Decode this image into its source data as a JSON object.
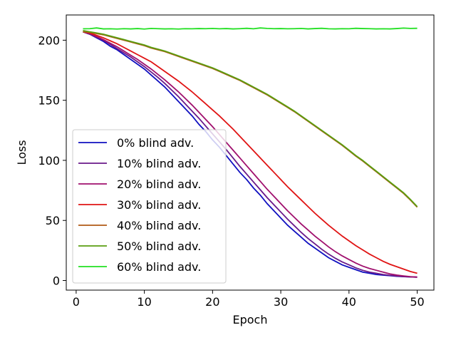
{
  "chart_data": {
    "type": "line",
    "xlabel": "Epoch",
    "ylabel": "Loss",
    "x": [
      1,
      2,
      3,
      4,
      5,
      6,
      7,
      8,
      9,
      10,
      11,
      12,
      13,
      14,
      15,
      16,
      17,
      18,
      19,
      20,
      21,
      22,
      23,
      24,
      25,
      26,
      27,
      28,
      29,
      30,
      31,
      32,
      33,
      34,
      35,
      36,
      37,
      38,
      39,
      40,
      41,
      42,
      43,
      44,
      45,
      46,
      47,
      48,
      49,
      50
    ],
    "xlim": [
      -1.45,
      52.45
    ],
    "xticks": [
      0,
      10,
      20,
      30,
      40,
      50
    ],
    "ylim": [
      -8,
      221
    ],
    "yticks": [
      0,
      50,
      100,
      150,
      200
    ],
    "legend": "lower left",
    "grid": false,
    "series": [
      {
        "name": "0% blind adv.",
        "color": "#1010c0",
        "values": [
          207,
          205,
          202,
          199,
          195,
          192,
          188,
          184,
          180,
          176,
          171,
          166,
          161,
          155,
          149,
          143,
          137,
          130,
          124,
          117,
          111,
          104,
          97,
          90,
          84,
          77,
          71,
          64,
          58,
          52,
          46,
          41,
          36,
          31,
          27,
          23,
          19,
          16,
          13,
          11,
          9,
          7,
          6,
          5,
          4.5,
          4,
          3.5,
          3.2,
          3,
          2.8
        ]
      },
      {
        "name": "10% blind adv.",
        "color": "#6a1a8a",
        "values": [
          207,
          205,
          202.5,
          200,
          196.5,
          193,
          189.5,
          186,
          182,
          178,
          173.5,
          169,
          164,
          158.5,
          153,
          147,
          141,
          135,
          128.5,
          122,
          115.5,
          109,
          102,
          95,
          88.5,
          82,
          75.5,
          69,
          63,
          57,
          51,
          45.5,
          40,
          35,
          30.5,
          26,
          22,
          18.5,
          15.5,
          13,
          10.5,
          8.5,
          7,
          6,
          5,
          4.3,
          3.7,
          3.3,
          3,
          2.8
        ]
      },
      {
        "name": "20% blind adv.",
        "color": "#a0106e",
        "values": [
          207,
          205.5,
          203,
          200.5,
          197.5,
          194.5,
          191,
          187.5,
          184,
          180,
          176,
          171.5,
          167,
          162,
          157,
          151.5,
          146,
          140,
          134,
          128,
          121.5,
          115,
          108.5,
          102,
          95.5,
          89,
          82.5,
          76,
          70,
          64,
          58,
          52.5,
          47,
          42,
          37,
          32.5,
          28,
          24,
          20.5,
          17.5,
          14.5,
          12,
          10,
          8.5,
          7,
          5.5,
          4.5,
          3.8,
          3.2,
          2.8
        ]
      },
      {
        "name": "30% blind adv.",
        "color": "#e01414",
        "values": [
          207,
          206,
          204,
          202,
          199.5,
          197,
          194,
          191,
          188,
          185,
          182,
          178,
          174,
          170,
          166,
          161.5,
          157,
          152,
          147,
          142,
          137,
          131.5,
          126,
          120,
          114,
          108,
          102,
          96,
          90,
          84,
          78,
          72.5,
          67,
          61.5,
          56,
          51,
          46,
          41.5,
          37,
          33,
          29,
          25.5,
          22,
          19,
          16,
          13.5,
          11.5,
          9.5,
          7.5,
          6
        ]
      },
      {
        "name": "40% blind adv.",
        "color": "#b05a14",
        "values": [
          207,
          206.5,
          205.5,
          204.5,
          203,
          201.5,
          200,
          198.5,
          197,
          195.5,
          193.5,
          192,
          190.5,
          188.5,
          186.5,
          184.5,
          182.5,
          180.5,
          178.5,
          176.5,
          174,
          171.5,
          169,
          166.5,
          163.5,
          160.5,
          157.5,
          154.5,
          151,
          147.5,
          144,
          140.5,
          136.5,
          132.5,
          128.5,
          124.5,
          120.5,
          116.5,
          112.5,
          108,
          103.5,
          99.5,
          95,
          90.5,
          86,
          81.5,
          77,
          72.5,
          67,
          61
        ]
      },
      {
        "name": "50% blind adv.",
        "color": "#5a9e10",
        "values": [
          208,
          207,
          206,
          205,
          203.5,
          202,
          200.5,
          199,
          197.5,
          196,
          194,
          192.5,
          191,
          189,
          187,
          185,
          183,
          181,
          179,
          177,
          174.5,
          172,
          169.5,
          167,
          164,
          161,
          158,
          155,
          151.5,
          148,
          144.5,
          141,
          137,
          133,
          129,
          125,
          121,
          117,
          113,
          108.5,
          104,
          100,
          95.5,
          91,
          86.5,
          82,
          77.5,
          73,
          67.5,
          61.5
        ]
      },
      {
        "name": "60% blind adv.",
        "color": "#22e022",
        "values": [
          209.5,
          209.6,
          210.2,
          209.4,
          209.5,
          209.3,
          209.6,
          209.4,
          209.7,
          209.3,
          209.8,
          209.6,
          209.4,
          209.5,
          209.3,
          209.6,
          209.5,
          209.7,
          209.6,
          209.8,
          209.5,
          209.7,
          209.4,
          209.6,
          209.9,
          209.5,
          210.2,
          209.8,
          209.6,
          209.7,
          209.5,
          209.6,
          209.8,
          209.4,
          209.7,
          209.9,
          209.5,
          209.4,
          209.6,
          209.5,
          209.9,
          209.7,
          209.6,
          209.4,
          209.5,
          209.4,
          209.7,
          210.1,
          209.8,
          209.9
        ]
      }
    ]
  }
}
